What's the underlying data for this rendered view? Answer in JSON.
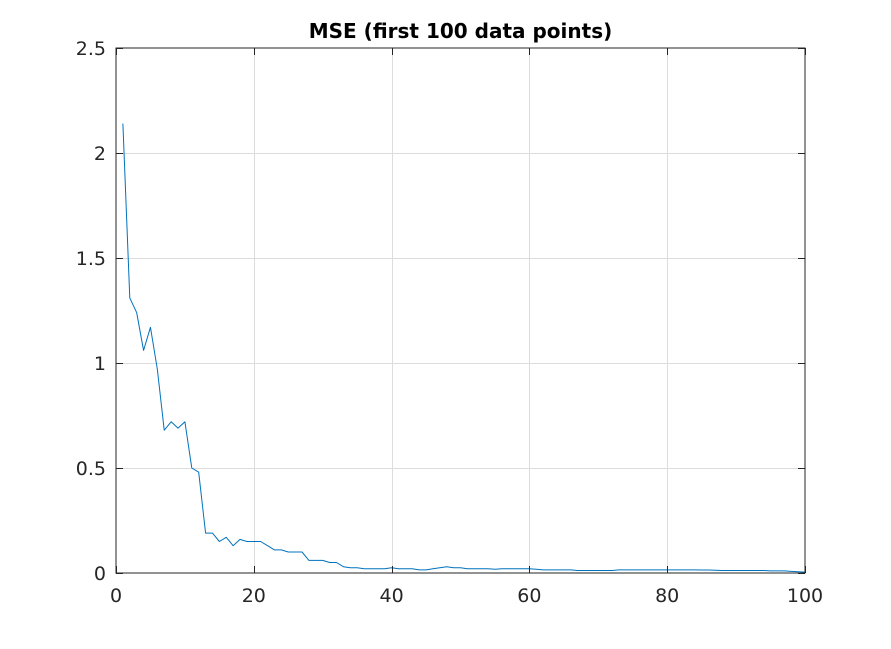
{
  "chart_data": {
    "type": "line",
    "title": "MSE (first 100 data points)",
    "xlabel": "",
    "ylabel": "",
    "xlim": [
      0,
      100
    ],
    "ylim": [
      0,
      2.5
    ],
    "x_ticks": [
      0,
      20,
      40,
      60,
      80,
      100
    ],
    "x_tick_labels": [
      "0",
      "20",
      "40",
      "60",
      "80",
      "100"
    ],
    "y_ticks": [
      0,
      0.5,
      1,
      1.5,
      2,
      2.5
    ],
    "y_tick_labels": [
      "0",
      "0.5",
      "1",
      "1.5",
      "2",
      "2.5"
    ],
    "grid": true,
    "legend": "none",
    "colors": {
      "line": "#0072BD",
      "grid": "#dcdcdc",
      "axis": "#262626"
    },
    "series": [
      {
        "x": [
          1,
          2,
          3,
          4,
          5,
          6,
          7,
          8,
          9,
          10,
          11,
          12,
          13,
          14,
          15,
          16,
          17,
          18,
          19,
          20,
          21,
          22,
          23,
          24,
          25,
          26,
          27,
          28,
          29,
          30,
          31,
          32,
          33,
          34,
          35,
          36,
          37,
          38,
          39,
          40,
          41,
          42,
          43,
          44,
          45,
          46,
          47,
          48,
          49,
          50,
          51,
          52,
          53,
          54,
          55,
          56,
          57,
          58,
          59,
          60,
          61,
          62,
          63,
          64,
          65,
          66,
          67,
          68,
          69,
          70,
          71,
          72,
          73,
          74,
          75,
          76,
          77,
          78,
          79,
          80,
          81,
          82,
          83,
          84,
          85,
          86,
          87,
          88,
          89,
          90,
          91,
          92,
          93,
          94,
          95,
          96,
          97,
          98,
          99,
          100
        ],
        "values": [
          2.14,
          1.31,
          1.24,
          1.06,
          1.17,
          0.97,
          0.68,
          0.72,
          0.69,
          0.72,
          0.5,
          0.48,
          0.19,
          0.19,
          0.15,
          0.17,
          0.13,
          0.16,
          0.15,
          0.15,
          0.15,
          0.13,
          0.11,
          0.11,
          0.1,
          0.1,
          0.1,
          0.06,
          0.06,
          0.06,
          0.05,
          0.05,
          0.03,
          0.025,
          0.025,
          0.02,
          0.02,
          0.02,
          0.02,
          0.025,
          0.02,
          0.02,
          0.02,
          0.015,
          0.015,
          0.02,
          0.025,
          0.03,
          0.025,
          0.025,
          0.02,
          0.02,
          0.02,
          0.02,
          0.018,
          0.02,
          0.02,
          0.02,
          0.02,
          0.02,
          0.018,
          0.015,
          0.015,
          0.015,
          0.015,
          0.015,
          0.012,
          0.012,
          0.012,
          0.012,
          0.012,
          0.012,
          0.015,
          0.015,
          0.015,
          0.015,
          0.015,
          0.015,
          0.015,
          0.015,
          0.015,
          0.015,
          0.015,
          0.015,
          0.014,
          0.014,
          0.013,
          0.012,
          0.012,
          0.012,
          0.012,
          0.012,
          0.012,
          0.012,
          0.01,
          0.01,
          0.01,
          0.008,
          0.006,
          0.004
        ]
      }
    ]
  }
}
